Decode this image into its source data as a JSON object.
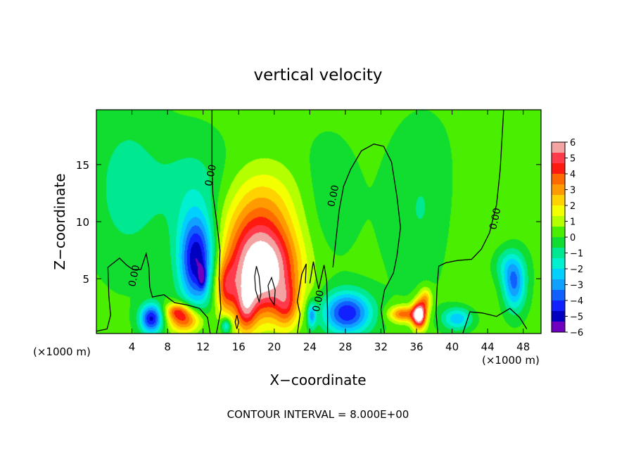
{
  "chart_data": {
    "type": "heatmap",
    "title": "vertical velocity",
    "xlabel": "X−coordinate",
    "ylabel": "Z−coordinate",
    "x_unit_left": "(×1000 m)",
    "x_unit_right": "(×1000 m)",
    "footer": "CONTOUR INTERVAL = 8.000E+00",
    "xlim": [
      0,
      50
    ],
    "ylim": [
      0.2,
      19.8
    ],
    "xticks": [
      4,
      8,
      12,
      16,
      20,
      24,
      28,
      32,
      36,
      40,
      44,
      48
    ],
    "xtick_labels": [
      "4",
      "8",
      "12",
      "16",
      "20",
      "24",
      "28",
      "32",
      "36",
      "40",
      "44",
      "48"
    ],
    "yticks": [
      5,
      10,
      15
    ],
    "ytick_labels": [
      "5",
      "10",
      "15"
    ],
    "colorbar": {
      "ticks": [
        6,
        5,
        4,
        3,
        2,
        1,
        0,
        -1,
        -2,
        -3,
        -4,
        -5,
        -6
      ],
      "tick_labels": [
        "6",
        "5",
        "4",
        "3",
        "2",
        "1",
        "0",
        "−1",
        "−2",
        "−3",
        "−4",
        "−5",
        "−6"
      ],
      "range": [
        -6,
        6
      ],
      "colors_top_to_bottom": [
        "#f4a3a3",
        "#ff3a4a",
        "#ff1a10",
        "#ff6a00",
        "#ff9a00",
        "#ffd200",
        "#f4ff00",
        "#b4ff00",
        "#4aee00",
        "#10dd30",
        "#00e890",
        "#00f0d0",
        "#00d0ff",
        "#10a0ff",
        "#1060ff",
        "#1020ff",
        "#0000c0",
        "#7000c0"
      ]
    },
    "contour_label": "0.00",
    "background_value": 0.2,
    "features": [
      {
        "kind": "updraft",
        "x": 18.6,
        "z": 5.4,
        "sx": 2.7,
        "sz": 2.6,
        "w": 6.8
      },
      {
        "kind": "updraft",
        "x": 18.2,
        "z": 9.4,
        "sx": 3.0,
        "sz": 2.6,
        "w": 2.4
      },
      {
        "kind": "updraft",
        "x": 19.0,
        "z": 12.5,
        "sx": 2.8,
        "sz": 2.2,
        "w": 0.9
      },
      {
        "kind": "updraft",
        "x": 16.8,
        "z": 2.4,
        "sx": 0.8,
        "sz": 1.6,
        "w": 3.0
      },
      {
        "kind": "updraft",
        "x": 21.4,
        "z": 2.6,
        "sx": 0.9,
        "sz": 1.4,
        "w": 2.4
      },
      {
        "kind": "updraft",
        "x": 14.5,
        "z": 4.2,
        "sx": 0.8,
        "sz": 1.6,
        "w": 2.6
      },
      {
        "kind": "updraft",
        "x": 36.3,
        "z": 1.8,
        "sx": 0.55,
        "sz": 0.8,
        "w": 7.0
      },
      {
        "kind": "updraft",
        "x": 34.5,
        "z": 1.9,
        "sx": 1.1,
        "sz": 0.5,
        "w": 3.6
      },
      {
        "kind": "updraft",
        "x": 37.0,
        "z": 3.2,
        "sx": 0.5,
        "sz": 0.7,
        "w": 2.6
      },
      {
        "kind": "updraft",
        "x": 10.0,
        "z": 1.4,
        "sx": 1.3,
        "sz": 0.8,
        "w": 4.0
      },
      {
        "kind": "updraft",
        "x": 9.0,
        "z": 2.2,
        "sx": 0.9,
        "sz": 0.5,
        "w": 2.6
      },
      {
        "kind": "downdraft",
        "x": 11.3,
        "z": 6.6,
        "sx": 1.4,
        "sz": 2.8,
        "w": -5.6
      },
      {
        "kind": "downdraft",
        "x": 11.9,
        "z": 5.1,
        "sx": 0.3,
        "sz": 0.7,
        "w": -2.4
      },
      {
        "kind": "downdraft",
        "x": 6.2,
        "z": 1.5,
        "sx": 0.9,
        "sz": 0.9,
        "w": -5.0
      },
      {
        "kind": "downdraft",
        "x": 28.2,
        "z": 2.0,
        "sx": 1.9,
        "sz": 1.3,
        "w": -4.8
      },
      {
        "kind": "downdraft",
        "x": 47.0,
        "z": 4.4,
        "sx": 0.9,
        "sz": 1.6,
        "w": -3.4
      },
      {
        "kind": "downdraft",
        "x": 46.2,
        "z": 6.2,
        "sx": 1.3,
        "sz": 1.2,
        "w": -1.5
      },
      {
        "kind": "downdraft",
        "x": 40.6,
        "z": 1.5,
        "sx": 1.2,
        "sz": 0.7,
        "w": -2.8
      },
      {
        "kind": "downdraft",
        "x": 3.5,
        "z": 13.0,
        "sx": 3.0,
        "sz": 5.0,
        "w": -1.2
      },
      {
        "kind": "downdraft",
        "x": 11.0,
        "z": 13.0,
        "sx": 2.8,
        "sz": 3.2,
        "w": -1.1
      },
      {
        "kind": "downdraft",
        "x": 37.0,
        "z": 11.0,
        "sx": 3.0,
        "sz": 5.0,
        "w": -1.0
      },
      {
        "kind": "downdraft",
        "x": 26.0,
        "z": 12.0,
        "sx": 2.5,
        "sz": 4.0,
        "w": -0.6
      },
      {
        "kind": "downdraft",
        "x": 24.2,
        "z": 1.8,
        "sx": 0.35,
        "sz": 0.8,
        "w": -3.0
      },
      {
        "kind": "downdraft",
        "x": 14.6,
        "z": 0.9,
        "sx": 0.4,
        "sz": 0.5,
        "w": -2.6
      },
      {
        "kind": "updraft",
        "x": 42.0,
        "z": 9.0,
        "sx": 3.0,
        "sz": 5.0,
        "w": 0.6
      }
    ],
    "zero_contours": [
      {
        "label_at": [
          4.6,
          5.2
        ],
        "points": [
          [
            0.0,
            0.4
          ],
          [
            1.2,
            0.6
          ],
          [
            1.6,
            1.8
          ],
          [
            1.4,
            3.5
          ],
          [
            1.3,
            6.0
          ],
          [
            2.6,
            6.8
          ],
          [
            3.4,
            6.2
          ],
          [
            4.1,
            5.8
          ],
          [
            5.0,
            5.8
          ],
          [
            5.6,
            7.2
          ],
          [
            5.9,
            6.0
          ],
          [
            6.0,
            4.3
          ],
          [
            6.3,
            3.4
          ],
          [
            7.6,
            3.6
          ],
          [
            8.8,
            2.9
          ],
          [
            10.2,
            2.7
          ],
          [
            11.6,
            2.4
          ],
          [
            12.5,
            1.6
          ],
          [
            12.8,
            0.2
          ]
        ]
      },
      {
        "label_at": [
          13.2,
          14.0
        ],
        "points": [
          [
            13.0,
            19.8
          ],
          [
            13.0,
            17.5
          ],
          [
            13.0,
            15.0
          ],
          [
            13.1,
            12.4
          ],
          [
            13.5,
            10.2
          ],
          [
            13.9,
            7.5
          ],
          [
            13.8,
            5.0
          ],
          [
            14.0,
            2.3
          ],
          [
            13.5,
            0.2
          ]
        ]
      },
      {
        "label_at": [
          25.3,
          3.0
        ],
        "points": [
          [
            24.0,
            4.6
          ],
          [
            24.4,
            6.5
          ],
          [
            24.7,
            5.2
          ],
          [
            25.0,
            4.1
          ],
          [
            25.6,
            6.2
          ],
          [
            25.9,
            4.8
          ],
          [
            26.0,
            2.1
          ],
          [
            26.0,
            0.2
          ]
        ]
      },
      {
        "label_at": [
          27.0,
          12.2
        ],
        "points": [
          [
            26.6,
            6.0
          ],
          [
            27.3,
            11.0
          ],
          [
            27.8,
            13.1
          ],
          [
            28.6,
            14.6
          ],
          [
            29.8,
            16.2
          ],
          [
            31.2,
            16.8
          ],
          [
            32.3,
            16.6
          ],
          [
            33.2,
            15.2
          ],
          [
            33.8,
            12.2
          ],
          [
            34.2,
            9.5
          ],
          [
            33.8,
            7.0
          ],
          [
            33.4,
            5.5
          ],
          [
            32.4,
            4.0
          ],
          [
            32.0,
            2.3
          ],
          [
            32.4,
            0.2
          ]
        ]
      },
      {
        "label_at": [
          45.2,
          10.2
        ],
        "points": [
          [
            45.8,
            19.8
          ],
          [
            45.4,
            14.5
          ],
          [
            45.0,
            11.5
          ],
          [
            44.2,
            9.0
          ],
          [
            43.3,
            7.6
          ],
          [
            42.2,
            6.7
          ],
          [
            40.6,
            6.6
          ],
          [
            39.3,
            6.4
          ],
          [
            38.5,
            6.1
          ],
          [
            38.3,
            4.1
          ],
          [
            38.2,
            2.0
          ],
          [
            38.4,
            0.2
          ]
        ]
      },
      {
        "label_at": null,
        "points": [
          [
            41.2,
            0.2
          ],
          [
            42.0,
            2.1
          ],
          [
            43.4,
            2.0
          ],
          [
            45.0,
            1.7
          ],
          [
            46.5,
            2.4
          ],
          [
            47.6,
            1.6
          ],
          [
            48.4,
            0.6
          ]
        ]
      },
      {
        "label_at": null,
        "points": [
          [
            22.6,
            0.2
          ],
          [
            22.9,
            1.9
          ],
          [
            22.6,
            3.0
          ],
          [
            23.1,
            5.4
          ],
          [
            23.6,
            6.3
          ],
          [
            23.5,
            4.6
          ]
        ]
      }
    ],
    "closed_contours": [
      {
        "points": [
          [
            18.0,
            6.1
          ],
          [
            18.3,
            5.2
          ],
          [
            18.5,
            3.6
          ],
          [
            18.3,
            3.0
          ],
          [
            17.9,
            4.0
          ],
          [
            17.8,
            5.2
          ],
          [
            18.0,
            6.1
          ]
        ]
      },
      {
        "points": [
          [
            19.7,
            5.1
          ],
          [
            20.1,
            4.0
          ],
          [
            20.0,
            2.7
          ],
          [
            19.5,
            3.3
          ],
          [
            19.3,
            4.4
          ],
          [
            19.7,
            5.1
          ]
        ]
      },
      {
        "points": [
          [
            15.8,
            1.8
          ],
          [
            16.0,
            1.2
          ],
          [
            15.8,
            0.6
          ],
          [
            15.6,
            1.2
          ],
          [
            15.8,
            1.8
          ]
        ]
      }
    ]
  }
}
